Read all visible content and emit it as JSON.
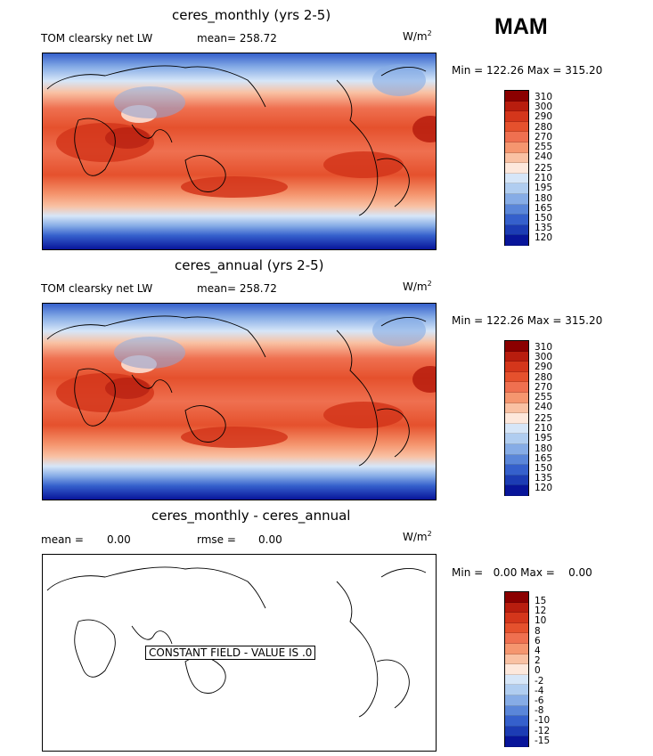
{
  "season": "MAM",
  "units_base": "W/m",
  "units_exp": "2",
  "panels": [
    {
      "title": "ceres_monthly (yrs 2-5)",
      "variable": "TOM clearsky net LW",
      "mean_text": "mean= 258.72",
      "minmax": "Min = 122.26 Max = 315.20"
    },
    {
      "title": "ceres_annual (yrs 2-5)",
      "variable": "TOM clearsky net LW",
      "mean_text": "mean= 258.72",
      "minmax": "Min = 122.26 Max = 315.20"
    },
    {
      "title": "ceres_monthly - ceres_annual",
      "mean_label": "mean =",
      "mean_value": "0.00",
      "rmse_label": "rmse =",
      "rmse_value": "0.00",
      "minmax": "Min =   0.00 Max =    0.00",
      "constant_note": "CONSTANT FIELD - VALUE IS .0"
    }
  ],
  "colorbar_levels": [
    "310",
    "300",
    "290",
    "280",
    "270",
    "255",
    "240",
    "225",
    "210",
    "195",
    "180",
    "165",
    "150",
    "135",
    "120"
  ],
  "colorbar_colors": [
    "#8b0000",
    "#b81d0e",
    "#d4361b",
    "#e5512d",
    "#ef7050",
    "#f5966f",
    "#f9c1a3",
    "#fde8dc",
    "#d6e6f8",
    "#b0cdf0",
    "#86ace6",
    "#5a86d9",
    "#3560cc",
    "#1c3cb4",
    "#08159a"
  ],
  "diff_levels": [
    "15",
    "12",
    "10",
    "8",
    "6",
    "4",
    "2",
    "0",
    "-2",
    "-4",
    "-6",
    "-8",
    "-10",
    "-12",
    "-15"
  ],
  "diff_colors": [
    "#8b0000",
    "#b81d0e",
    "#d4361b",
    "#e5512d",
    "#ef7050",
    "#f5966f",
    "#f9c1a3",
    "#fde8dc",
    "#d6e6f8",
    "#b0cdf0",
    "#86ace6",
    "#5a86d9",
    "#3560cc",
    "#1c3cb4",
    "#08159a"
  ]
}
